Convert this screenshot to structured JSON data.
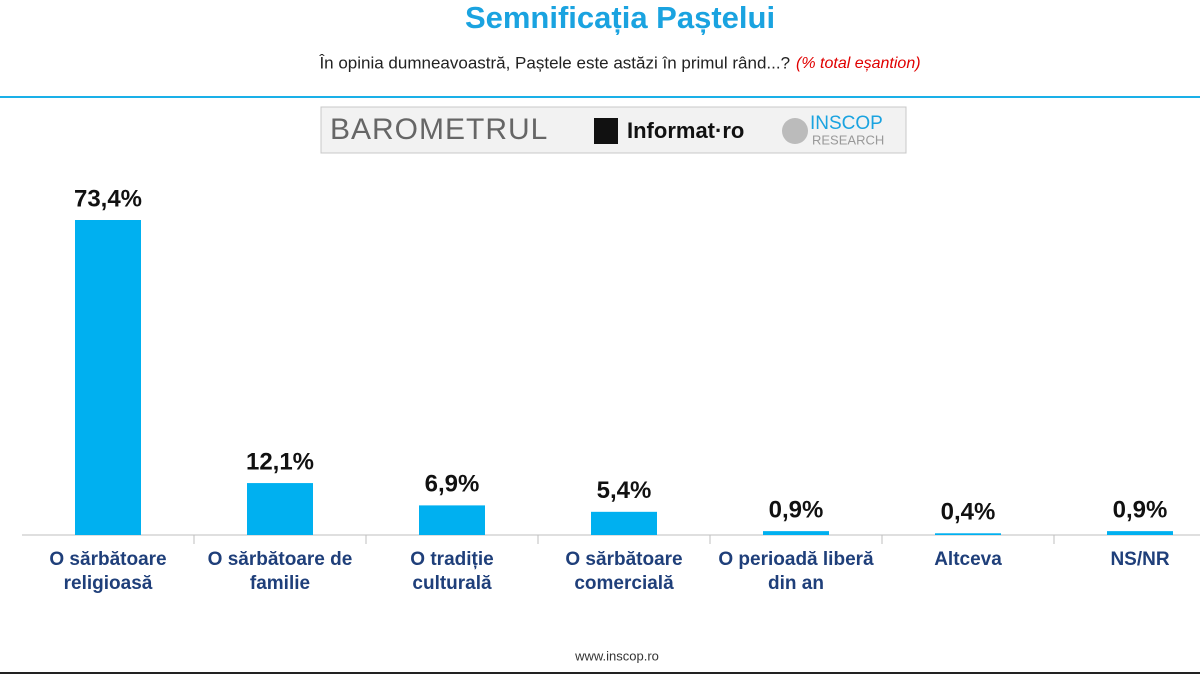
{
  "chart_data": {
    "type": "bar",
    "title": "Semnificația Paștelui",
    "subtitle": "În opinia dumneavoastră, Paștele este astăzi în primul rând...?",
    "note": "(% total eșantion)",
    "categories": [
      "O sărbătoare religioasă",
      "O sărbătoare de familie",
      "O tradiție culturală",
      "O sărbătoare comercială",
      "O perioadă liberă din an",
      "Altceva",
      "NS/NR"
    ],
    "values": [
      73.4,
      12.1,
      6.9,
      5.4,
      0.9,
      0.4,
      0.9
    ],
    "value_labels": [
      "73,4%",
      "12,1%",
      "6,9%",
      "5,4%",
      "0,9%",
      "0,4%",
      "0,9%"
    ],
    "color": "#00b0f0"
  },
  "logo": {
    "barometer": "BAROMETRUL",
    "partner": "Informat·ro",
    "brand": "INSCOP",
    "brand_sub": "RESEARCH"
  },
  "footer": "www.inscop.ro"
}
